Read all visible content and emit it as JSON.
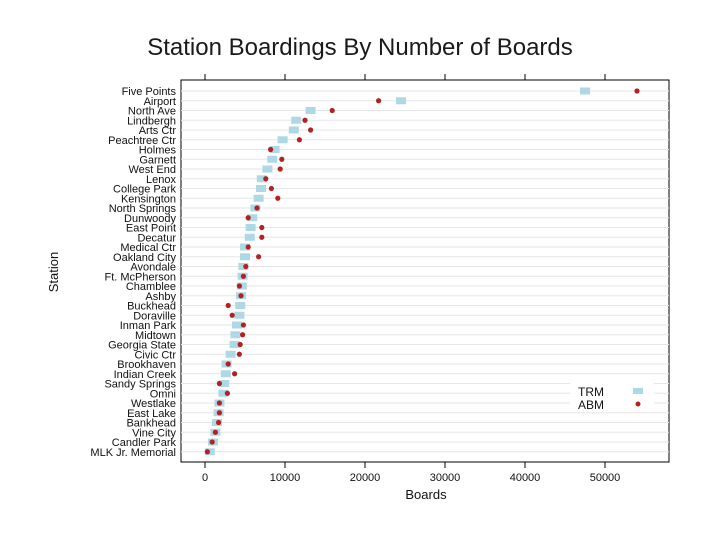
{
  "chart_data": {
    "type": "scatter",
    "title": "Station Boardings By Number of Boards",
    "xlabel": "Boards",
    "ylabel": "Station",
    "xlim": [
      -3000,
      58000
    ],
    "x_ticks": [
      0,
      10000,
      20000,
      30000,
      40000,
      50000
    ],
    "x_tick_labels": [
      "0",
      "10000",
      "20000",
      "30000",
      "40000",
      "50000"
    ],
    "legend_position": "bottom-right",
    "grid": true,
    "colors": {
      "TRM": "#add8e6",
      "ABM": "#b22222"
    },
    "categories": [
      "Five Points",
      "Airport",
      "North Ave",
      "Lindbergh",
      "Arts Ctr",
      "Peachtree Ctr",
      "Holmes",
      "Garnett",
      "West End",
      "Lenox",
      "College Park",
      "Kensington",
      "North Springs",
      "Dunwoody",
      "East Point",
      "Decatur",
      "Medical Ctr",
      "Oakland City",
      "Avondale",
      "Ft. McPherson",
      "Chamblee",
      "Ashby",
      "Buckhead",
      "Doraville",
      "Inman Park",
      "Midtown",
      "Georgia State",
      "Civic Ctr",
      "Brookhaven",
      "Indian Creek",
      "Sandy Springs",
      "Omni",
      "Westlake",
      "East Lake",
      "Bankhead",
      "Vine City",
      "Candler Park",
      "MLK Jr. Memorial"
    ],
    "series": [
      {
        "name": "TRM",
        "values": [
          47500,
          24500,
          13200,
          11400,
          11100,
          9700,
          8700,
          8400,
          7800,
          7100,
          7000,
          6700,
          6300,
          5900,
          5700,
          5600,
          5000,
          5000,
          4800,
          4700,
          4600,
          4500,
          4400,
          4300,
          4000,
          3800,
          3700,
          3200,
          2700,
          2600,
          2400,
          2300,
          1800,
          1700,
          1500,
          1300,
          1000,
          600
        ]
      },
      {
        "name": "ABM",
        "values": [
          54000,
          21700,
          15900,
          12500,
          13200,
          11800,
          8200,
          9600,
          9400,
          7600,
          8300,
          9100,
          6500,
          5400,
          7100,
          7100,
          5400,
          6700,
          5100,
          4800,
          4300,
          4500,
          2900,
          3400,
          4800,
          4700,
          4400,
          4300,
          2900,
          3700,
          1800,
          2800,
          1800,
          1800,
          1700,
          1300,
          900,
          300
        ]
      }
    ]
  }
}
